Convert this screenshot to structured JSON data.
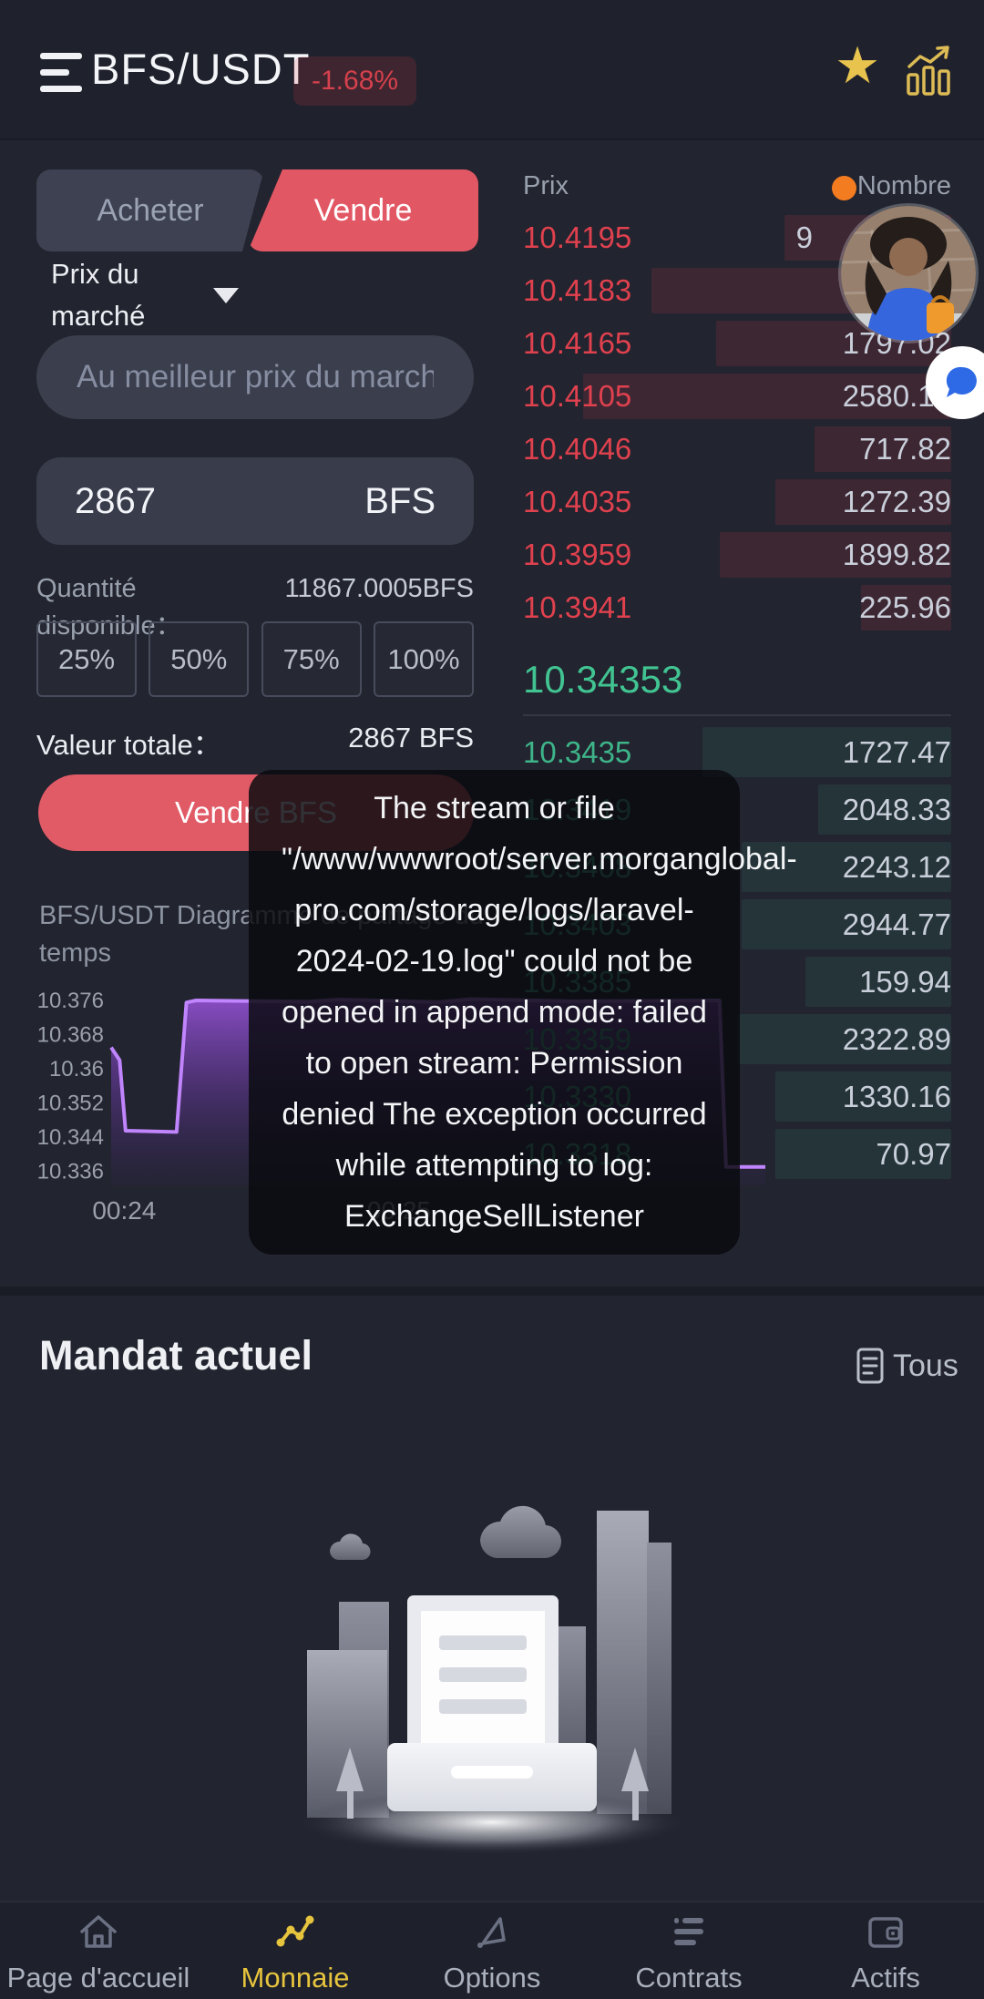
{
  "header": {
    "title": "BFS/USDT",
    "change_badge": "-1.68%"
  },
  "icons": {
    "star": "★"
  },
  "trade": {
    "tab_buy": "Acheter",
    "tab_sell": "Vendre",
    "order_type_label": "Prix du marché",
    "price_placeholder": "Au meilleur prix du march",
    "amount_value": "2867",
    "amount_unit": "BFS",
    "available_label": "Quantité disponible：",
    "available_value": "11867.0005BFS",
    "percent_options": [
      "25%",
      "50%",
      "75%",
      "100%"
    ],
    "total_label": "Valeur totale：",
    "total_value": "2867 BFS",
    "sell_button_label": "Vendre BFS"
  },
  "orderbook": {
    "columns": {
      "price": "Prix",
      "amount": "Nombre"
    },
    "asks": [
      {
        "price": "10.4195",
        "amount": "9",
        "depth": 0.39,
        "amount_shift": 152
      },
      {
        "price": "10.4183",
        "amount": "2",
        "depth": 0.7,
        "amount_shift": 97
      },
      {
        "price": "10.4165",
        "amount": "1797.02",
        "depth": 0.55
      },
      {
        "price": "10.4105",
        "amount": "2580.12",
        "depth": 0.86
      },
      {
        "price": "10.4046",
        "amount": "717.82",
        "depth": 0.32
      },
      {
        "price": "10.4035",
        "amount": "1272.39",
        "depth": 0.41
      },
      {
        "price": "10.3959",
        "amount": "1899.82",
        "depth": 0.54
      },
      {
        "price": "10.3941",
        "amount": "225.96",
        "depth": 0.21
      }
    ],
    "last_price": "10.34353",
    "bids": [
      {
        "price": "10.3435",
        "amount": "1727.47",
        "depth": 0.58
      },
      {
        "price": "10.3419",
        "amount": "2048.33",
        "depth": 0.31
      },
      {
        "price": "10.3408",
        "amount": "2243.12",
        "depth": 0.49
      },
      {
        "price": "10.3403",
        "amount": "2944.77",
        "depth": 0.49
      },
      {
        "price": "10.3385",
        "amount": "159.94",
        "depth": 0.34
      },
      {
        "price": "10.3359",
        "amount": "2322.89",
        "depth": 0.5
      },
      {
        "price": "10.3330",
        "amount": "1330.16",
        "depth": 0.41
      },
      {
        "price": "10.3318",
        "amount": "70.97",
        "depth": 0.41
      }
    ]
  },
  "toast": {
    "message": "The stream or file \"/www/wwwroot/server.morganglobal-pro.com/storage/logs/laravel-2024-02-19.log\" could not be opened in append mode: failed to open stream: Permission denied The exception occurred while attempting to log: ExchangeSellListener"
  },
  "chart_data": {
    "type": "area",
    "title": "BFS/USDT Diagramme de partage du temps",
    "ylabel": "",
    "xlabel": "",
    "ylim": [
      10.332,
      10.38
    ],
    "y_ticks": [
      10.376,
      10.368,
      10.36,
      10.352,
      10.344,
      10.336
    ],
    "x_ticks": [
      {
        "label": "00:24",
        "pos": 0.02
      },
      {
        "label": "00:25",
        "pos": 0.44
      }
    ],
    "grid": false,
    "legend": false,
    "line_color": "#c084fc",
    "series": [
      {
        "name": "BFS/USDT",
        "points": [
          [
            0.0,
            10.365
          ],
          [
            0.013,
            10.362
          ],
          [
            0.022,
            10.3455
          ],
          [
            0.1,
            10.3452
          ],
          [
            0.115,
            10.3755
          ],
          [
            0.13,
            10.376
          ],
          [
            0.3,
            10.3757
          ],
          [
            0.35,
            10.3762
          ],
          [
            0.5,
            10.3756
          ],
          [
            0.55,
            10.3763
          ],
          [
            0.7,
            10.3758
          ],
          [
            0.93,
            10.376
          ],
          [
            0.94,
            10.337
          ],
          [
            1.0,
            10.337
          ]
        ]
      }
    ]
  },
  "orders": {
    "title": "Mandat actuel",
    "all_label": "Tous"
  },
  "nav": {
    "items": [
      {
        "label": "Page d'accueil",
        "icon": "home",
        "active": false
      },
      {
        "label": "Monnaie",
        "icon": "coin",
        "active": true
      },
      {
        "label": "Options",
        "icon": "options",
        "active": false
      },
      {
        "label": "Contrats",
        "icon": "contracts",
        "active": false
      },
      {
        "label": "Actifs",
        "icon": "wallet",
        "active": false
      }
    ]
  },
  "colors": {
    "background": "#22242f",
    "panel": "#3a3e4d",
    "sell_red": "#e15b67",
    "ask_red": "#e0414e",
    "bid_green": "#41c492",
    "gold": "#e8c44e",
    "purple": "#c084fc"
  }
}
